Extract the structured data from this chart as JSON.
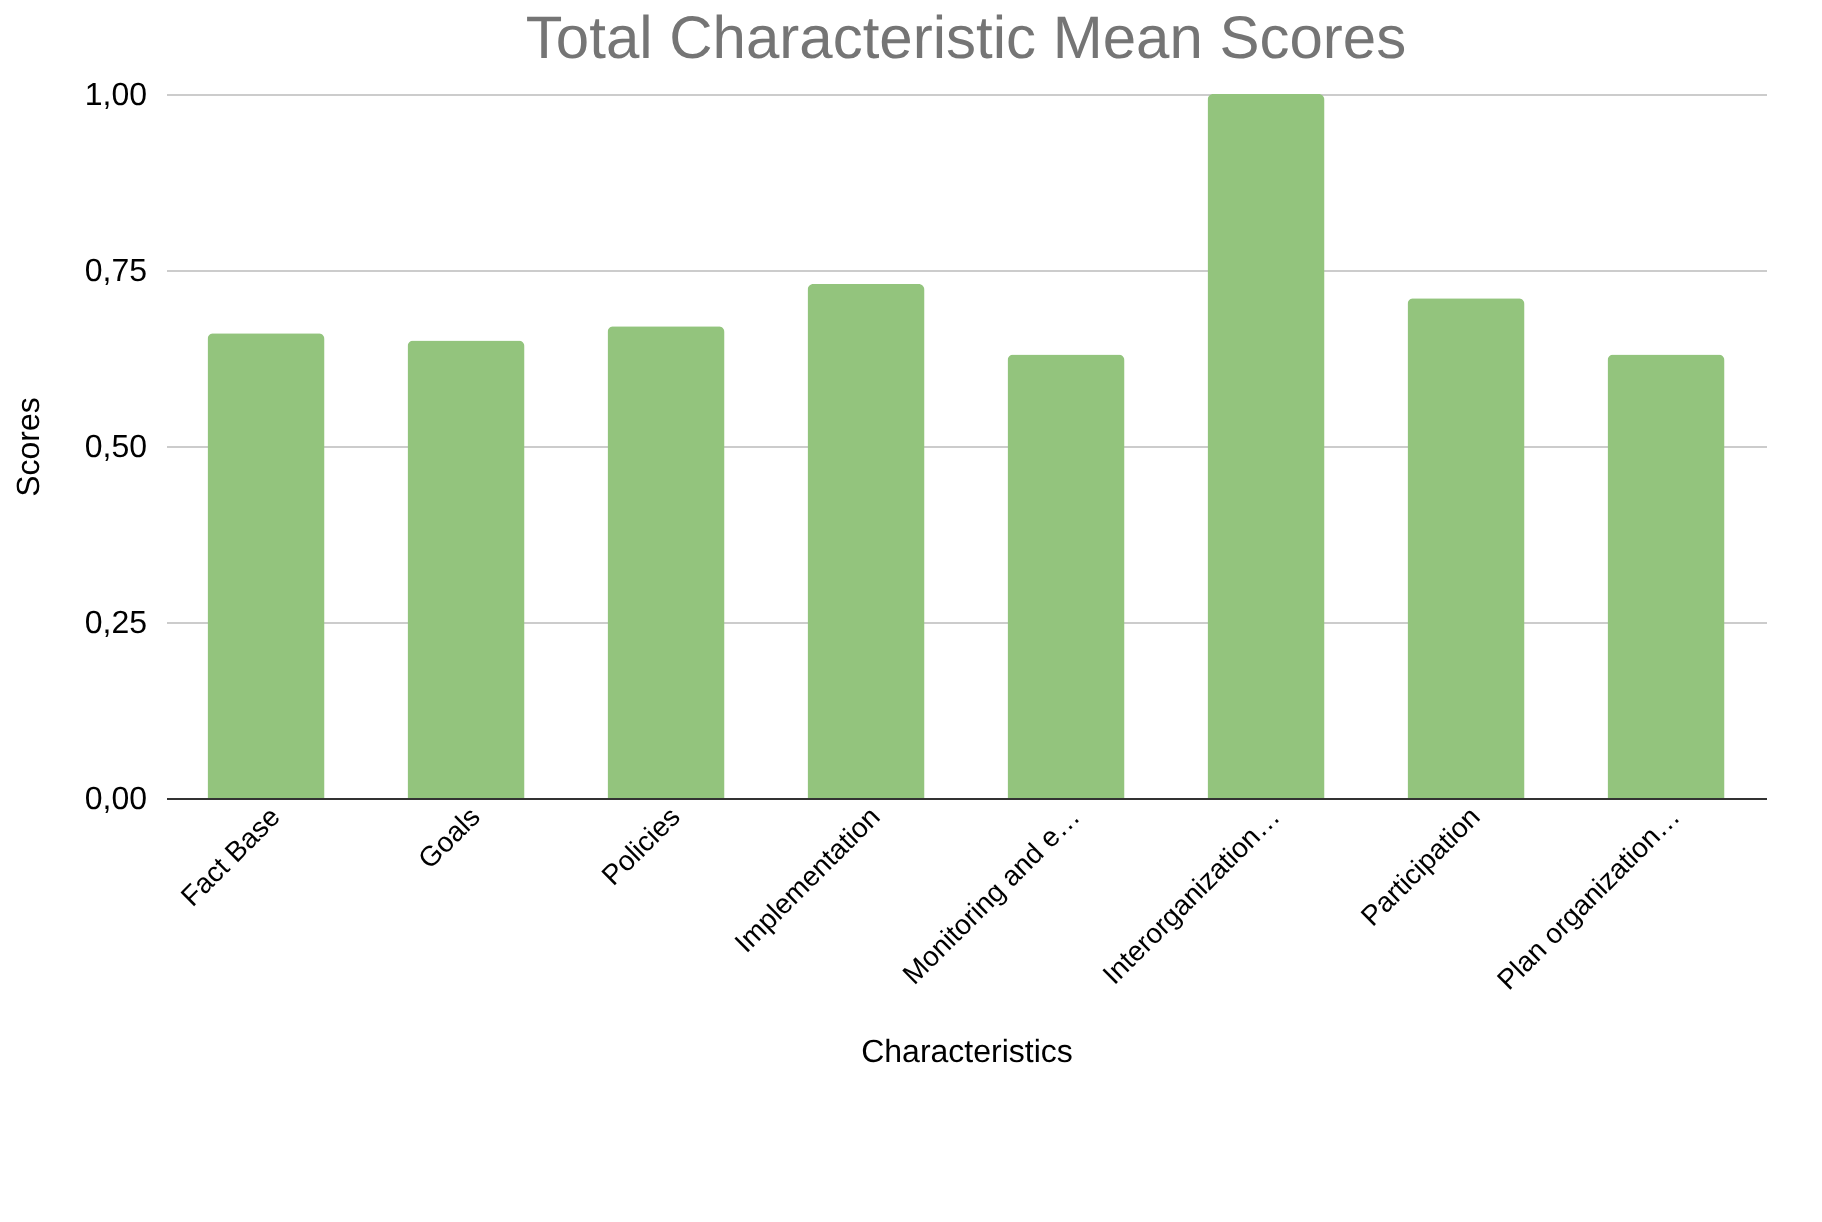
{
  "chart_data": {
    "type": "bar",
    "title": "Total Characteristic Mean Scores",
    "xlabel": "Characteristics",
    "ylabel": "Scores",
    "categories": [
      "Fact Base",
      "Goals",
      "Policies",
      "Implementation",
      "Monitoring and e…",
      "Interorganization…",
      "Participation",
      "Plan organization…"
    ],
    "values": [
      0.66,
      0.65,
      0.67,
      0.73,
      0.63,
      1.0,
      0.71,
      0.63
    ],
    "color": "#93c47d",
    "ylim": [
      0,
      1
    ],
    "yticks": [
      {
        "value": 0,
        "label": "0,00"
      },
      {
        "value": 0.25,
        "label": "0,25"
      },
      {
        "value": 0.5,
        "label": "0,50"
      },
      {
        "value": 0.75,
        "label": "0,75"
      },
      {
        "value": 1,
        "label": "1,00"
      }
    ],
    "grid": "y"
  }
}
